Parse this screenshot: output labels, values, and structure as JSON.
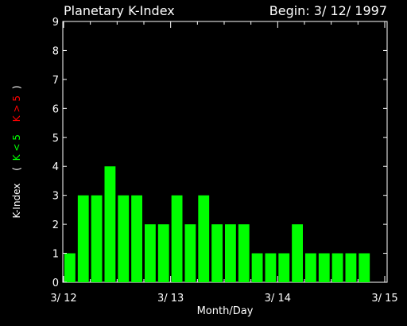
{
  "header": {
    "title": "Planetary K-Index",
    "begin": "Begin: 3/ 12/ 1997"
  },
  "chart_data": {
    "type": "bar",
    "title": "Planetary K-Index",
    "xlabel": "Month/Day",
    "ylabel": {
      "main": "K-Index",
      "open": "(",
      "low": "K < 5",
      "high": "K > 5",
      "close": ")"
    },
    "ylim": [
      0,
      9
    ],
    "yticks": [
      "0",
      "1",
      "2",
      "3",
      "4",
      "5",
      "6",
      "7",
      "8",
      "9"
    ],
    "xlim": [
      0,
      24
    ],
    "xticks": [
      {
        "at": 0,
        "label": "3/ 12"
      },
      {
        "at": 8,
        "label": "3/ 13"
      },
      {
        "at": 16,
        "label": "3/ 14"
      },
      {
        "at": 24,
        "label": "3/ 15"
      }
    ],
    "bar_interval": 1,
    "values": [
      1,
      3,
      3,
      4,
      3,
      3,
      2,
      2,
      3,
      2,
      3,
      2,
      2,
      2,
      1,
      1,
      1,
      2,
      1,
      1,
      1,
      1,
      1
    ],
    "colors": {
      "low": "#00ff00",
      "high": "#ff0000",
      "axes": "#ffffff",
      "background": "#000000"
    },
    "threshold": 5,
    "grid": false
  }
}
